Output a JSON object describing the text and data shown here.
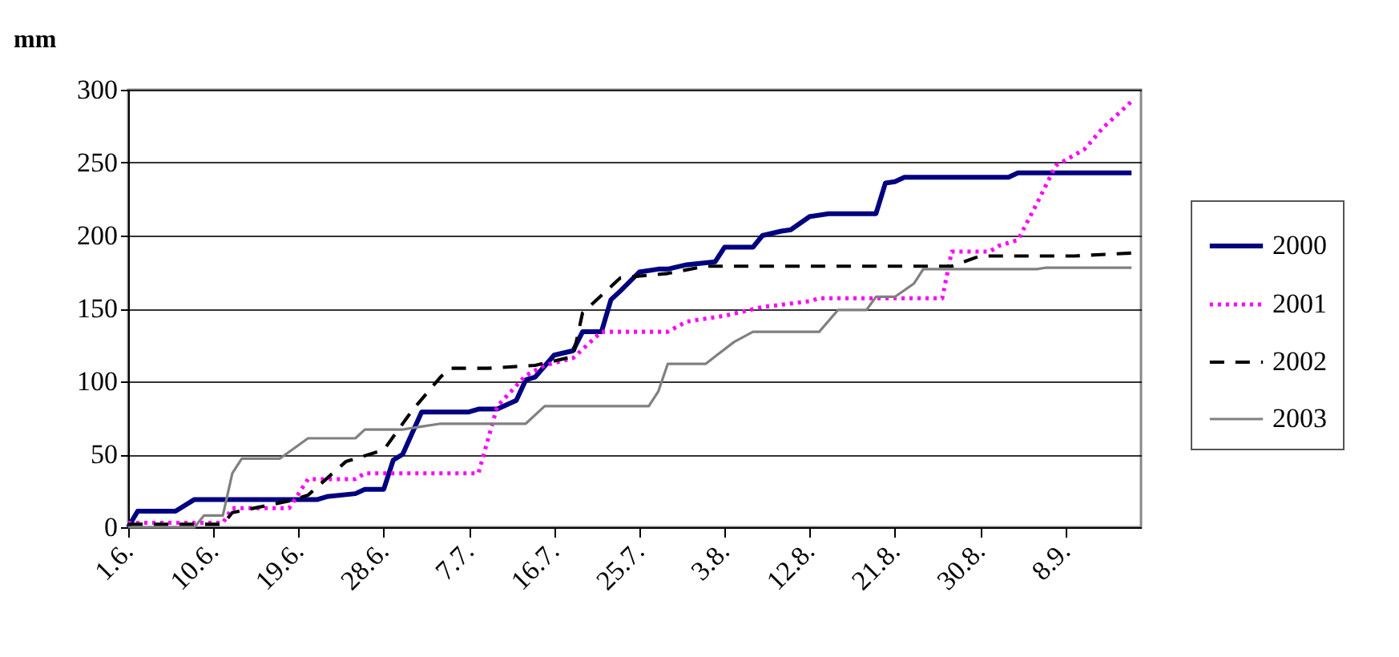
{
  "chart_data": {
    "type": "line",
    "ylabel": "mm",
    "xlim": [
      "--06-01",
      "--09-16"
    ],
    "xticks": [
      {
        "value": "--06-01",
        "label": "1.6."
      },
      {
        "value": "--06-10",
        "label": "10.6."
      },
      {
        "value": "--06-19",
        "label": "19.6."
      },
      {
        "value": "--06-28",
        "label": "28.6."
      },
      {
        "value": "--07-07",
        "label": "7.7."
      },
      {
        "value": "--07-16",
        "label": "16.7."
      },
      {
        "value": "--07-25",
        "label": "25.7."
      },
      {
        "value": "--08-03",
        "label": "3.8."
      },
      {
        "value": "--08-12",
        "label": "12.8."
      },
      {
        "value": "--08-21",
        "label": "21.8."
      },
      {
        "value": "--08-30",
        "label": "30.8."
      },
      {
        "value": "--09-08",
        "label": "8.9."
      }
    ],
    "ylim": [
      0,
      300
    ],
    "yticks": [
      0,
      50,
      100,
      150,
      200,
      250,
      300
    ],
    "grid": "y",
    "legend": "right",
    "marker": "none",
    "series": [
      {
        "name": "2000",
        "color": "#000080",
        "line_style": "solid",
        "x": [
          "--06-01",
          "--06-02",
          "--06-06",
          "--06-08",
          "--06-21",
          "--06-22",
          "--06-25",
          "--06-26",
          "--06-28",
          "--06-29",
          "--06-30",
          "--07-02",
          "--07-07",
          "--07-08",
          "--07-10",
          "--07-12",
          "--07-13",
          "--07-14",
          "--07-16",
          "--07-18",
          "--07-19",
          "--07-21",
          "--07-22",
          "--07-23",
          "--07-25",
          "--07-27",
          "--07-28",
          "--07-30",
          "--08-02",
          "--08-03",
          "--08-06",
          "--08-07",
          "--08-09",
          "--08-10",
          "--08-12",
          "--08-14",
          "--08-19",
          "--08-20",
          "--08-21",
          "--08-22",
          "--09-02",
          "--09-03",
          "--09-15"
        ],
        "values": [
          0,
          11,
          11,
          19,
          19,
          21,
          23,
          26,
          26,
          46,
          50,
          79,
          79,
          81,
          81,
          87,
          101,
          103,
          118,
          121,
          134,
          134,
          156,
          162,
          175,
          177,
          177,
          180,
          182,
          192,
          192,
          200,
          203,
          204,
          213,
          215,
          215,
          236,
          237,
          240,
          240,
          243,
          243
        ]
      },
      {
        "name": "2001",
        "color": "#ff00ff",
        "line_style": "dotted",
        "x": [
          "--06-01",
          "--06-11",
          "--06-12",
          "--06-18",
          "--06-20",
          "--06-25",
          "--06-26",
          "--07-08",
          "--07-10",
          "--07-13",
          "--07-15",
          "--07-18",
          "--07-21",
          "--07-28",
          "--07-30",
          "--08-03",
          "--08-07",
          "--08-12",
          "--08-13",
          "--08-26",
          "--08-27",
          "--08-31",
          "--09-01",
          "--09-03",
          "--09-05",
          "--09-07",
          "--09-10",
          "--09-12",
          "--09-15"
        ],
        "values": [
          3,
          3,
          13,
          13,
          33,
          33,
          37,
          37,
          83,
          104,
          111,
          116,
          134,
          134,
          141,
          145,
          151,
          155,
          157,
          157,
          189,
          189,
          193,
          197,
          222,
          248,
          259,
          274,
          292
        ]
      },
      {
        "name": "2002",
        "color": "#000000",
        "line_style": "dashed",
        "x": [
          "--06-01",
          "--06-11",
          "--06-12",
          "--06-18",
          "--06-20",
          "--06-24",
          "--06-28",
          "--07-01",
          "--07-04",
          "--07-05",
          "--07-09",
          "--07-14",
          "--07-18",
          "--07-19",
          "--07-23",
          "--07-28",
          "--08-01",
          "--08-27",
          "--08-30",
          "--09-09",
          "--09-15"
        ],
        "values": [
          2,
          2,
          10,
          18,
          22,
          45,
          53,
          80,
          103,
          109,
          109,
          111,
          117,
          147,
          171,
          174,
          179,
          179,
          186,
          186,
          188
        ]
      },
      {
        "name": "2003",
        "color": "#808080",
        "line_style": "solid",
        "x": [
          "--06-01",
          "--06-08",
          "--06-09",
          "--06-11",
          "--06-12",
          "--06-13",
          "--06-17",
          "--06-20",
          "--06-25",
          "--06-26",
          "--06-30",
          "--07-02",
          "--07-04",
          "--07-13",
          "--07-15",
          "--07-26",
          "--07-27",
          "--07-28",
          "--08-01",
          "--08-02",
          "--08-04",
          "--08-06",
          "--08-13",
          "--08-15",
          "--08-18",
          "--08-19",
          "--08-21",
          "--08-23",
          "--08-24",
          "--09-05",
          "--09-06",
          "--09-15"
        ],
        "values": [
          0,
          0,
          8,
          8,
          37,
          47,
          47,
          61,
          61,
          67,
          67,
          69,
          71,
          71,
          83,
          83,
          93,
          112,
          112,
          117,
          127,
          134,
          134,
          149,
          149,
          158,
          158,
          167,
          177,
          177,
          178,
          178
        ]
      }
    ]
  }
}
